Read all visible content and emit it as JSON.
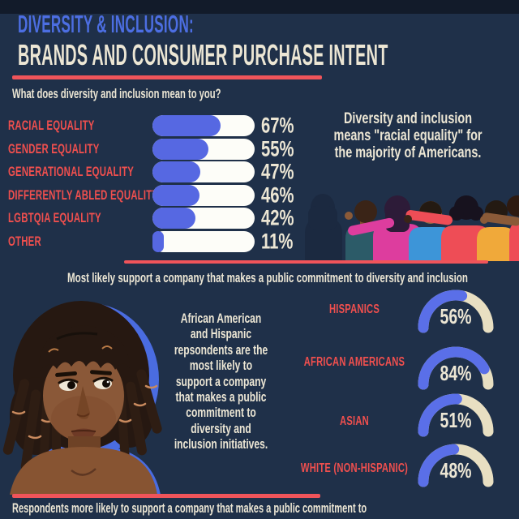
{
  "header": {
    "title_line1": "DIVERSITY & INCLUSION:",
    "title_line2": "BRANDS AND CONSUMER PURCHASE INTENT"
  },
  "bar_section": {
    "question": "What does diversity and inclusion mean to you?",
    "rows": [
      {
        "label": "RACIAL EQUALITY",
        "value": 67,
        "value_label": "67%"
      },
      {
        "label": "GENDER EQUALITY",
        "value": 55,
        "value_label": "55%"
      },
      {
        "label": "GENERATIONAL EQUALITY",
        "value": 47,
        "value_label": "47%"
      },
      {
        "label": "DIFFERENTLY ABLED EQUALITY",
        "value": 46,
        "value_label": "46%"
      },
      {
        "label": "LGBTQIA EQUALITY",
        "value": 42,
        "value_label": "42%"
      },
      {
        "label": "OTHER",
        "value": 11,
        "value_label": "11%"
      }
    ]
  },
  "racial_callout": {
    "line1": "Diversity and inclusion",
    "line2": "means \"racial equality\" for",
    "line3": "the majority of Americans."
  },
  "support_section": {
    "heading": "Most likely support a company that makes a public commitment to diversity and inclusion",
    "callout_lines": [
      "African American",
      "and Hispanic",
      "repsondents are the",
      "most likely to",
      "support a company",
      "that makes a public",
      "commitment to",
      "diversity and",
      "inclusion initiatives."
    ],
    "gauges": [
      {
        "label": "HISPANICS",
        "value": 56,
        "value_label": "56%"
      },
      {
        "label": "AFRICAN AMERICANS",
        "value": 84,
        "value_label": "84%"
      },
      {
        "label": "ASIAN",
        "value": 51,
        "value_label": "51%"
      },
      {
        "label": "WHITE (NON-HISPANIC)",
        "value": 48,
        "value_label": "48%"
      }
    ]
  },
  "footer": {
    "text": "Respondents more likely to support a company that makes a public commitment to"
  },
  "illustrations": {
    "people": "seven people standing arm in arm, seen from behind",
    "portrait": "African American woman with locs, portrait illustration"
  },
  "colors": {
    "background": "#1f3049",
    "top_strip": "#121b2a",
    "accent_blue": "#4c6ee2",
    "cream": "#ece6d4",
    "coral": "#f0545a",
    "coral_text": "#ef4f4e",
    "bar_blue": "#5668e2",
    "bar_track": "#fdfdf8",
    "gauge_fill": "#5a6fe8",
    "gauge_track": "#e8dfc2"
  },
  "chart_data": [
    {
      "type": "bar",
      "title": "What does diversity and inclusion mean to you?",
      "categories": [
        "RACIAL EQUALITY",
        "GENDER EQUALITY",
        "GENERATIONAL EQUALITY",
        "DIFFERENTLY ABLED EQUALITY",
        "LGBTQIA EQUALITY",
        "OTHER"
      ],
      "values": [
        67,
        55,
        47,
        46,
        42,
        11
      ],
      "value_suffix": "%",
      "xlim": [
        0,
        100
      ],
      "orientation": "horizontal",
      "bar_color": "#5668e2",
      "track_color": "#fdfdf8",
      "annotation": "Diversity and inclusion means \"racial equality\" for the majority of Americans."
    },
    {
      "type": "gauge",
      "title": "Most likely support a company that makes a public commitment to diversity and inclusion",
      "categories": [
        "HISPANICS",
        "AFRICAN AMERICANS",
        "ASIAN",
        "WHITE (NON-HISPANIC)"
      ],
      "values": [
        56,
        84,
        51,
        48
      ],
      "value_suffix": "%",
      "range": [
        0,
        100
      ],
      "fill_color": "#5a6fe8",
      "track_color": "#e8dfc2",
      "annotation": "African American and Hispanic repsondents are the most likely to support a company that makes a public commitment to diversity and inclusion initiatives."
    }
  ]
}
